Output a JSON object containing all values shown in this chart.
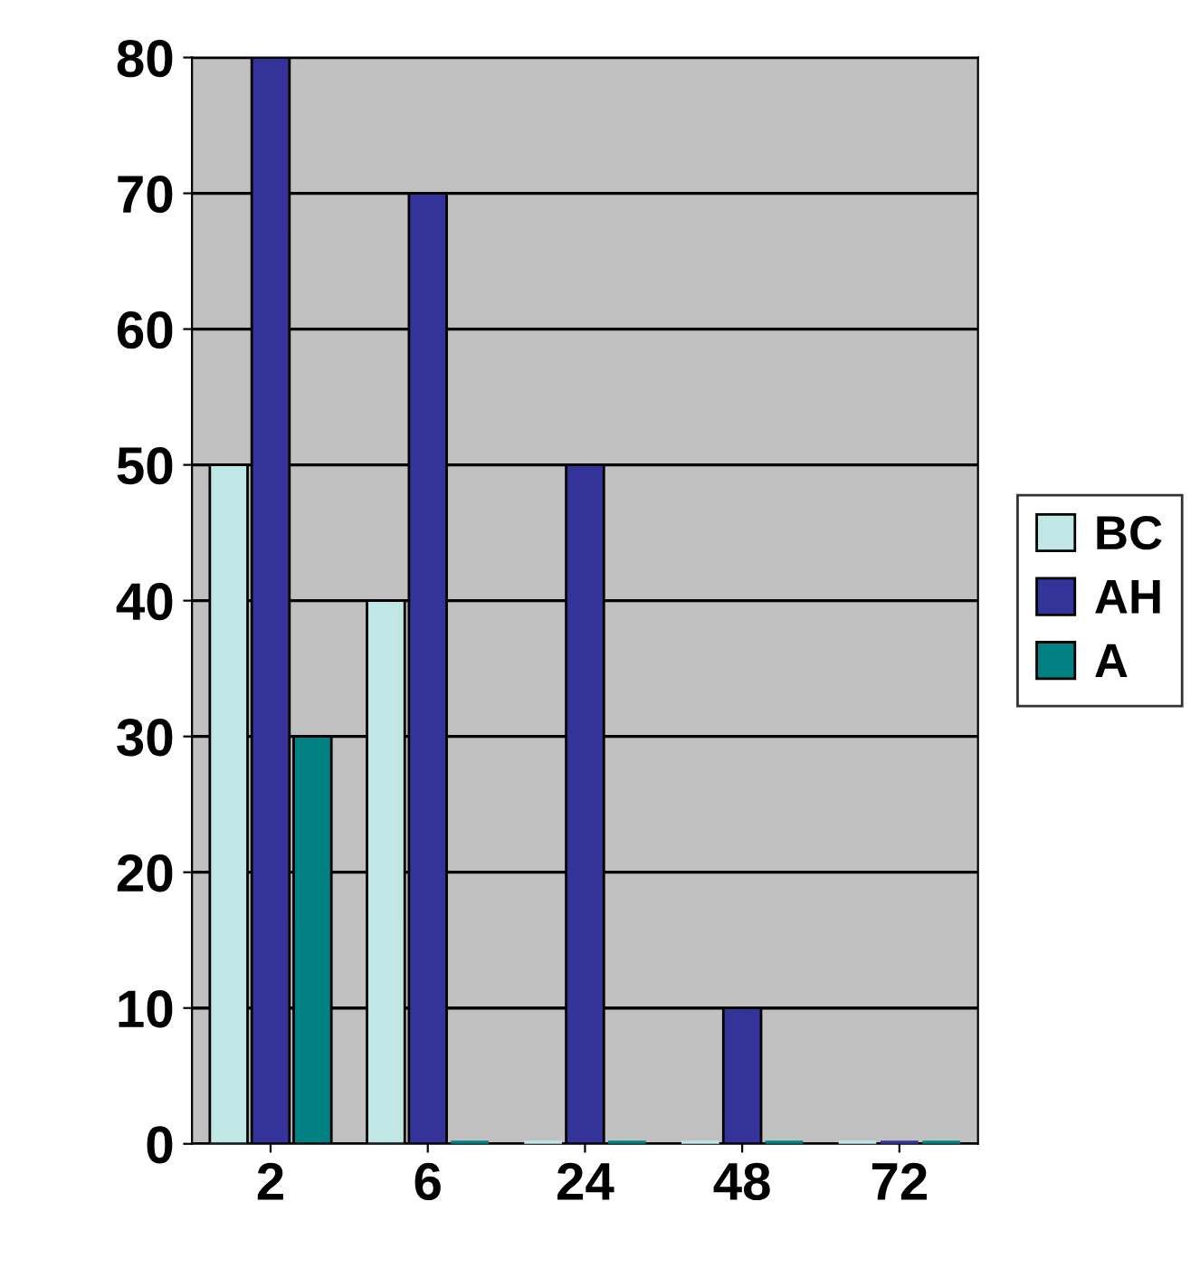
{
  "chart_data": {
    "type": "bar",
    "categories": [
      "2",
      "6",
      "24",
      "48",
      "72"
    ],
    "series": [
      {
        "name": "BC",
        "color": "#c0e6e6",
        "values": [
          50,
          40,
          0,
          0,
          0
        ]
      },
      {
        "name": "AH",
        "color": "#333399",
        "values": [
          80,
          70,
          50,
          10,
          0
        ]
      },
      {
        "name": "A",
        "color": "#008080",
        "values": [
          30,
          0,
          0,
          0,
          0
        ]
      }
    ],
    "ylim": [
      0,
      80
    ],
    "yticks": [
      0,
      10,
      20,
      30,
      40,
      50,
      60,
      70,
      80
    ],
    "grid": "y",
    "legend": "right"
  }
}
